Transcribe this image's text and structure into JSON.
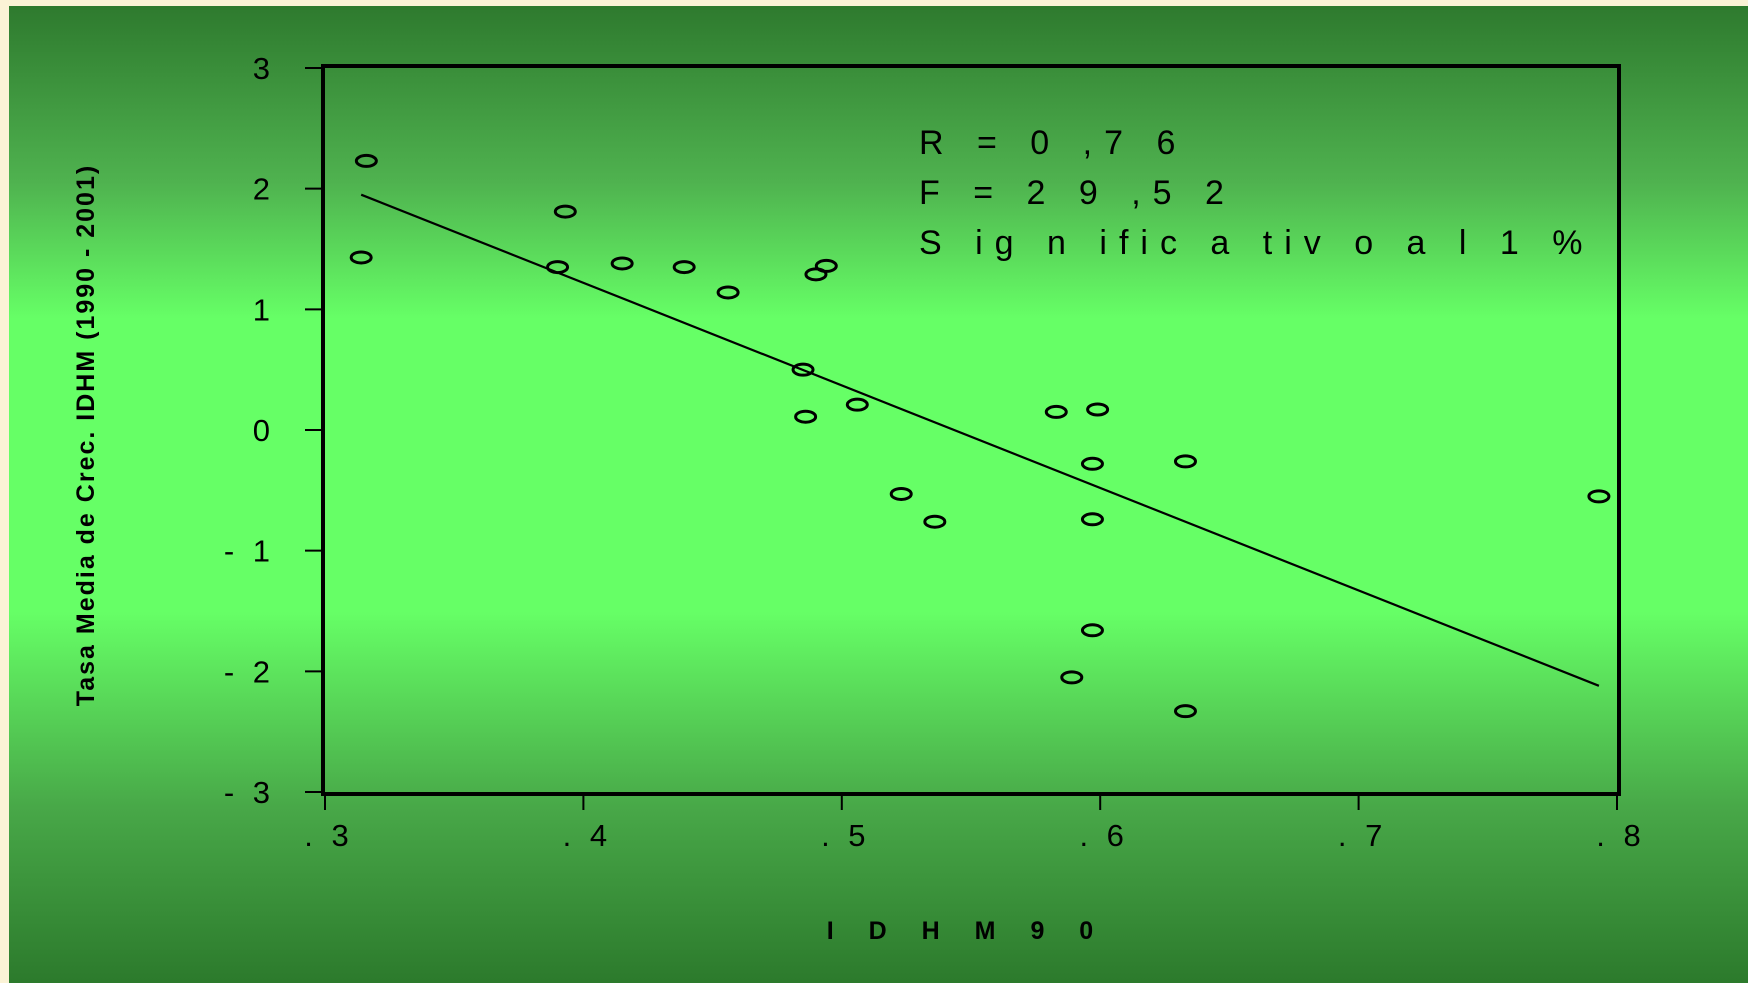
{
  "chart_data": {
    "type": "scatter",
    "title": "",
    "xlabel": "I D  H  M  9  0",
    "ylabel": "Tasa Media de Crec. IDHM (1990 - 2001)",
    "xlim": [
      0.3,
      0.8
    ],
    "ylim": [
      -3,
      3
    ],
    "x_ticks": [
      0.3,
      0.4,
      0.5,
      0.6,
      0.7,
      0.8
    ],
    "x_tick_labels": [
      ". 3",
      ". 4",
      ". 5",
      ". 6",
      ". 7",
      ". 8"
    ],
    "y_ticks": [
      3,
      2,
      1,
      0,
      -1,
      -2,
      -3
    ],
    "y_tick_labels": [
      "3",
      "2",
      "1",
      "0",
      "- 1",
      "- 2",
      "- 3"
    ],
    "grid": false,
    "legend": "none",
    "points": [
      {
        "x": 0.316,
        "y": 2.23
      },
      {
        "x": 0.314,
        "y": 1.43
      },
      {
        "x": 0.393,
        "y": 1.81
      },
      {
        "x": 0.39,
        "y": 1.35
      },
      {
        "x": 0.415,
        "y": 1.38
      },
      {
        "x": 0.439,
        "y": 1.35
      },
      {
        "x": 0.456,
        "y": 1.14
      },
      {
        "x": 0.49,
        "y": 1.29
      },
      {
        "x": 0.494,
        "y": 1.36
      },
      {
        "x": 0.485,
        "y": 0.5
      },
      {
        "x": 0.486,
        "y": 0.11
      },
      {
        "x": 0.506,
        "y": 0.21
      },
      {
        "x": 0.523,
        "y": -0.53
      },
      {
        "x": 0.536,
        "y": -0.76
      },
      {
        "x": 0.583,
        "y": 0.15
      },
      {
        "x": 0.599,
        "y": 0.17
      },
      {
        "x": 0.597,
        "y": -0.28
      },
      {
        "x": 0.597,
        "y": -0.74
      },
      {
        "x": 0.633,
        "y": -0.26
      },
      {
        "x": 0.597,
        "y": -1.66
      },
      {
        "x": 0.589,
        "y": -2.05
      },
      {
        "x": 0.633,
        "y": -2.33
      },
      {
        "x": 0.793,
        "y": -0.55
      }
    ],
    "regression_line": {
      "x1": 0.314,
      "y1": 1.95,
      "x2": 0.793,
      "y2": -2.12
    },
    "annotations": [
      "R   =  0 ,7 6",
      "F   =  2 9 ,5 2",
      "S ig n ific a tiv o   a l 1 %"
    ],
    "colors": {
      "background": "#66ff66",
      "line": "#000000",
      "marker": "#000000"
    }
  }
}
